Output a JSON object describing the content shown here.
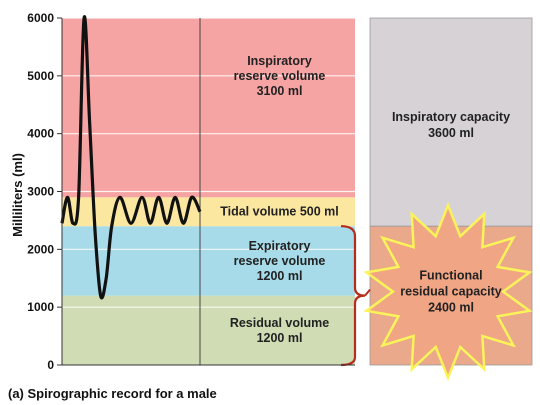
{
  "chart_data": {
    "type": "area",
    "ylabel": "Milliliters (ml)",
    "ylim": [
      0,
      6000
    ],
    "yticks": [
      "0",
      "1000",
      "2000",
      "3000",
      "4000",
      "5000",
      "6000"
    ],
    "grid": true,
    "zones": [
      {
        "name": "residual",
        "from": 0,
        "to": 1200,
        "color": "#cfdcb4",
        "lines": [
          "Residual volume",
          "1200 ml"
        ]
      },
      {
        "name": "expiratory-reserve",
        "from": 1200,
        "to": 2400,
        "color": "#a7dbe9",
        "lines": [
          "Expiratory",
          "reserve volume",
          "1200 ml"
        ]
      },
      {
        "name": "tidal",
        "from": 2400,
        "to": 2900,
        "color": "#fbe7a0",
        "lines": [
          "Tidal volume 500 ml"
        ]
      },
      {
        "name": "inspiratory-reserve",
        "from": 2900,
        "to": 6000,
        "color": "#f6a3a3",
        "lines": [
          "Inspiratory",
          "reserve volume",
          "3100 ml"
        ]
      }
    ],
    "capacities": [
      {
        "name": "inspiratory-capacity",
        "from": 2400,
        "to": 6000,
        "color": "#d6d2d6",
        "lines": [
          "Inspiratory capacity",
          "3600 ml"
        ]
      },
      {
        "name": "functional-residual-capacity",
        "from": 0,
        "to": 2400,
        "color": "#e9a98a",
        "lines": [
          "Functional",
          "residual capacity",
          "2400 ml"
        ]
      }
    ],
    "spirogram": {
      "x": [
        0,
        0.04,
        0.08,
        0.12,
        0.16,
        0.2,
        0.24,
        0.28,
        0.32,
        0.36,
        0.42,
        0.5,
        0.58,
        0.64,
        0.7,
        0.76,
        0.82,
        0.88,
        0.94,
        1.0
      ],
      "y": [
        2450,
        2900,
        2450,
        2900,
        6000,
        4200,
        2300,
        1200,
        1500,
        2400,
        2900,
        2450,
        2900,
        2450,
        2900,
        2450,
        2900,
        2450,
        2900,
        2650
      ]
    }
  },
  "caption": "(a) Spirographic record for a male"
}
